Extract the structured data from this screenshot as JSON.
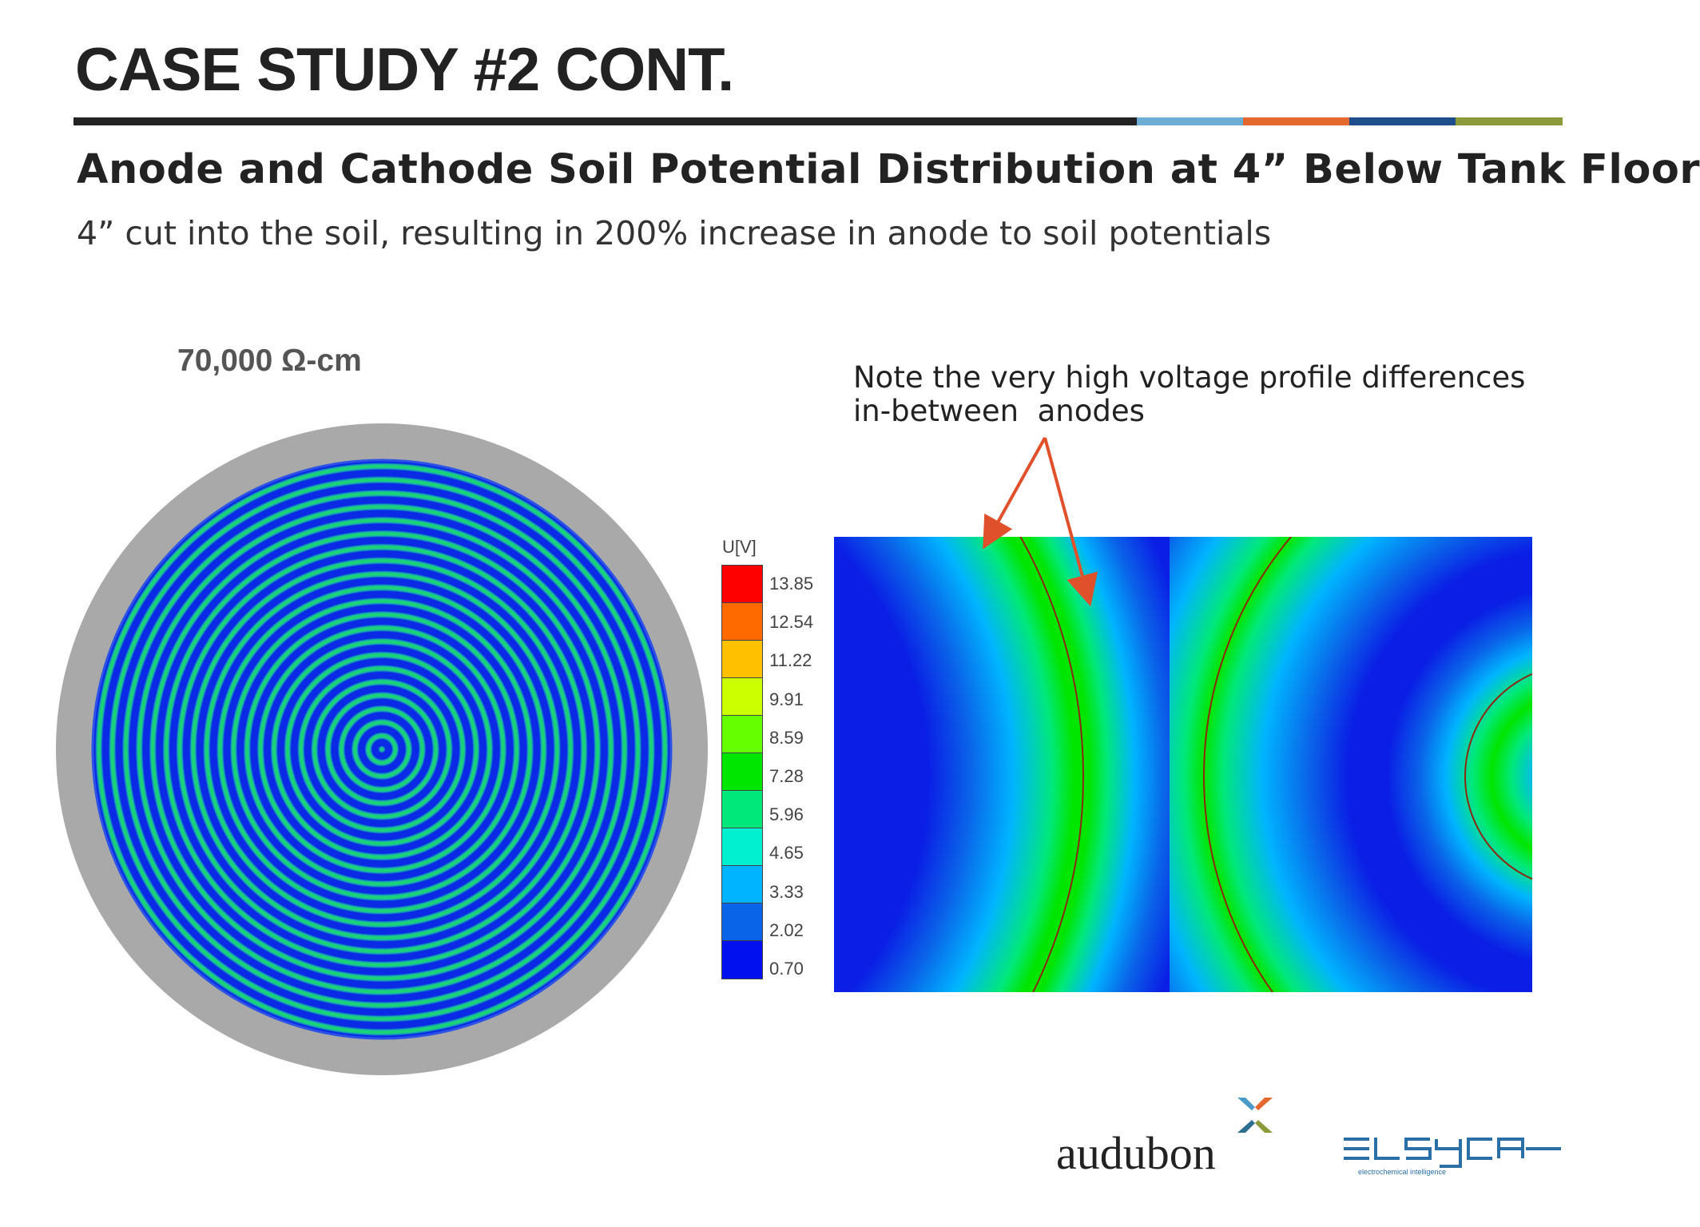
{
  "slide": {
    "title": "CASE STUDY #2 CONT.",
    "subtitle": "Anode and Cathode Soil Potential Distribution at 4” Below Tank Floor",
    "description": "4” cut into the soil, resulting in 200% increase in anode to soil potentials",
    "resistivity_label": "70,000 Ω-cm",
    "annotation": "Note the very high voltage profile differences\nin-between  anodes",
    "rule_colors": [
      "#222222",
      "#6aaed6",
      "#e3672f",
      "#1f4e8c",
      "#8c9a3c"
    ]
  },
  "legend": {
    "title": "U[V]",
    "levels": [
      {
        "label": "13.85",
        "color": "#ff0000"
      },
      {
        "label": "12.54",
        "color": "#ff6a00"
      },
      {
        "label": "11.22",
        "color": "#ffc000"
      },
      {
        "label": "9.91",
        "color": "#ccff00"
      },
      {
        "label": "8.59",
        "color": "#66ff00"
      },
      {
        "label": "7.28",
        "color": "#00e600"
      },
      {
        "label": "5.96",
        "color": "#00e87a"
      },
      {
        "label": "4.65",
        "color": "#00f0d0"
      },
      {
        "label": "3.33",
        "color": "#00b4ff"
      },
      {
        "label": "2.02",
        "color": "#0a64e8"
      },
      {
        "label": "0.70",
        "color": "#0010ee"
      }
    ]
  },
  "logos": {
    "audubon": "audubon",
    "elsyca_tagline": "electrochemical intelligence"
  }
}
